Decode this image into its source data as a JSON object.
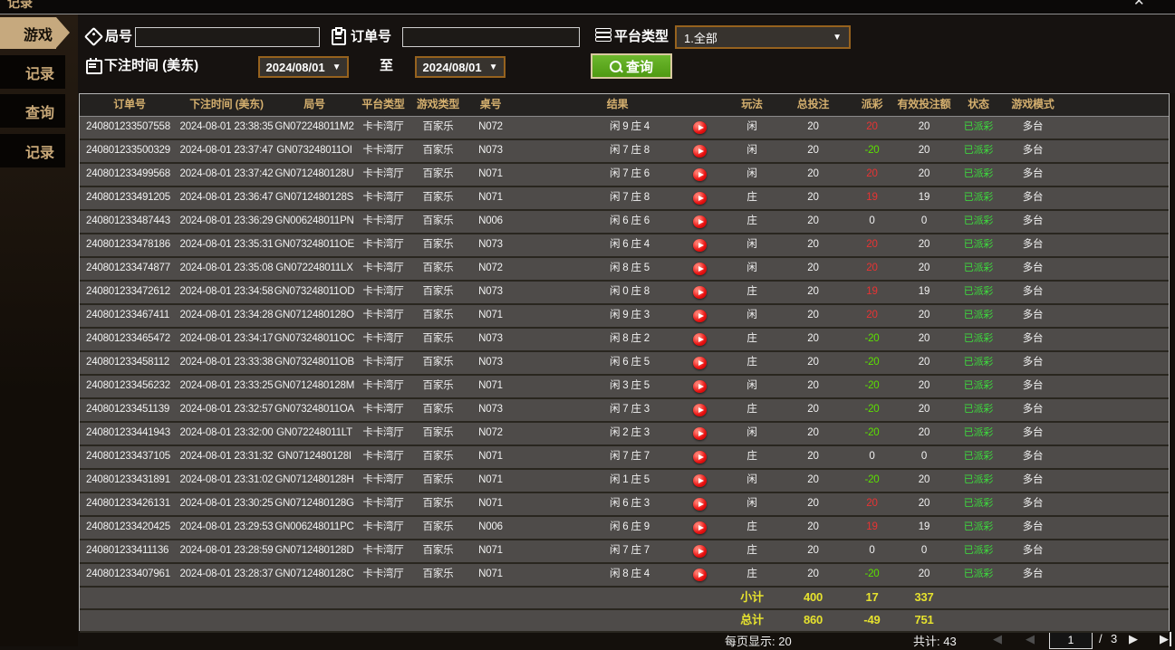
{
  "window": {
    "clipped_title": "记录",
    "close_glyph": "✕"
  },
  "colors": {
    "accent_tan": "#c6a97e",
    "button_green": "#5ca61c",
    "date_border_orange": "#96621e",
    "header_gold": "#d4af6e",
    "payout_win_red": "#e83333",
    "payout_lose_green": "#5ce000",
    "status_green": "#3ddd3d",
    "summary_yellow": "#e6e22e"
  },
  "sidebar": {
    "items": [
      {
        "label": "游戏",
        "active": true
      },
      {
        "label": "记录",
        "active": false
      },
      {
        "label": "查询",
        "active": false
      },
      {
        "label": "记录",
        "active": false
      }
    ]
  },
  "filters": {
    "round_label": "局号",
    "round_value": "",
    "order_label": "订单号",
    "order_value": "",
    "platform_label": "平台类型",
    "platform_value": "1.全部",
    "caret": "▼",
    "time_label": "下注时间 (美东)",
    "date_from": "2024/08/01",
    "to_label": "至",
    "date_to": "2024/08/01",
    "search_label": "查询"
  },
  "table": {
    "columns": [
      "订单号",
      "下注时间 (美东)",
      "局号",
      "平台类型",
      "游戏类型",
      "桌号",
      "结果",
      "玩法",
      "总投注",
      "派彩",
      "有效投注额",
      "状态",
      "游戏模式"
    ],
    "rows": [
      {
        "order": "240801233507558",
        "time": "2024-08-01 23:38:35",
        "round": "GN072248011M2",
        "platform": "卡卡湾厅",
        "gametype": "百家乐",
        "tableno": "N072",
        "result": "闲 9 庄 4",
        "playtype": "闲",
        "bet": "20",
        "payout": "20",
        "valid": "20",
        "status": "已派彩",
        "mode": "多台"
      },
      {
        "order": "240801233500329",
        "time": "2024-08-01 23:37:47",
        "round": "GN073248011OI",
        "platform": "卡卡湾厅",
        "gametype": "百家乐",
        "tableno": "N073",
        "result": "闲 7 庄 8",
        "playtype": "闲",
        "bet": "20",
        "payout": "-20",
        "valid": "20",
        "status": "已派彩",
        "mode": "多台"
      },
      {
        "order": "240801233499568",
        "time": "2024-08-01 23:37:42",
        "round": "GN0712480128U",
        "platform": "卡卡湾厅",
        "gametype": "百家乐",
        "tableno": "N071",
        "result": "闲 7 庄 6",
        "playtype": "闲",
        "bet": "20",
        "payout": "20",
        "valid": "20",
        "status": "已派彩",
        "mode": "多台"
      },
      {
        "order": "240801233491205",
        "time": "2024-08-01 23:36:47",
        "round": "GN0712480128S",
        "platform": "卡卡湾厅",
        "gametype": "百家乐",
        "tableno": "N071",
        "result": "闲 7 庄 8",
        "playtype": "庄",
        "bet": "20",
        "payout": "19",
        "valid": "19",
        "status": "已派彩",
        "mode": "多台"
      },
      {
        "order": "240801233487443",
        "time": "2024-08-01 23:36:29",
        "round": "GN006248011PN",
        "platform": "卡卡湾厅",
        "gametype": "百家乐",
        "tableno": "N006",
        "result": "闲 6 庄 6",
        "playtype": "庄",
        "bet": "20",
        "payout": "0",
        "valid": "0",
        "status": "已派彩",
        "mode": "多台"
      },
      {
        "order": "240801233478186",
        "time": "2024-08-01 23:35:31",
        "round": "GN073248011OE",
        "platform": "卡卡湾厅",
        "gametype": "百家乐",
        "tableno": "N073",
        "result": "闲 6 庄 4",
        "playtype": "闲",
        "bet": "20",
        "payout": "20",
        "valid": "20",
        "status": "已派彩",
        "mode": "多台"
      },
      {
        "order": "240801233474877",
        "time": "2024-08-01 23:35:08",
        "round": "GN072248011LX",
        "platform": "卡卡湾厅",
        "gametype": "百家乐",
        "tableno": "N072",
        "result": "闲 8 庄 5",
        "playtype": "闲",
        "bet": "20",
        "payout": "20",
        "valid": "20",
        "status": "已派彩",
        "mode": "多台"
      },
      {
        "order": "240801233472612",
        "time": "2024-08-01 23:34:58",
        "round": "GN073248011OD",
        "platform": "卡卡湾厅",
        "gametype": "百家乐",
        "tableno": "N073",
        "result": "闲 0 庄 8",
        "playtype": "庄",
        "bet": "20",
        "payout": "19",
        "valid": "19",
        "status": "已派彩",
        "mode": "多台"
      },
      {
        "order": "240801233467411",
        "time": "2024-08-01 23:34:28",
        "round": "GN0712480128O",
        "platform": "卡卡湾厅",
        "gametype": "百家乐",
        "tableno": "N071",
        "result": "闲 9 庄 3",
        "playtype": "闲",
        "bet": "20",
        "payout": "20",
        "valid": "20",
        "status": "已派彩",
        "mode": "多台"
      },
      {
        "order": "240801233465472",
        "time": "2024-08-01 23:34:17",
        "round": "GN073248011OC",
        "platform": "卡卡湾厅",
        "gametype": "百家乐",
        "tableno": "N073",
        "result": "闲 8 庄 2",
        "playtype": "庄",
        "bet": "20",
        "payout": "-20",
        "valid": "20",
        "status": "已派彩",
        "mode": "多台"
      },
      {
        "order": "240801233458112",
        "time": "2024-08-01 23:33:38",
        "round": "GN073248011OB",
        "platform": "卡卡湾厅",
        "gametype": "百家乐",
        "tableno": "N073",
        "result": "闲 6 庄 5",
        "playtype": "庄",
        "bet": "20",
        "payout": "-20",
        "valid": "20",
        "status": "已派彩",
        "mode": "多台"
      },
      {
        "order": "240801233456232",
        "time": "2024-08-01 23:33:25",
        "round": "GN0712480128M",
        "platform": "卡卡湾厅",
        "gametype": "百家乐",
        "tableno": "N071",
        "result": "闲 3 庄 5",
        "playtype": "闲",
        "bet": "20",
        "payout": "-20",
        "valid": "20",
        "status": "已派彩",
        "mode": "多台"
      },
      {
        "order": "240801233451139",
        "time": "2024-08-01 23:32:57",
        "round": "GN073248011OA",
        "platform": "卡卡湾厅",
        "gametype": "百家乐",
        "tableno": "N073",
        "result": "闲 7 庄 3",
        "playtype": "庄",
        "bet": "20",
        "payout": "-20",
        "valid": "20",
        "status": "已派彩",
        "mode": "多台"
      },
      {
        "order": "240801233441943",
        "time": "2024-08-01 23:32:00",
        "round": "GN072248011LT",
        "platform": "卡卡湾厅",
        "gametype": "百家乐",
        "tableno": "N072",
        "result": "闲 2 庄 3",
        "playtype": "闲",
        "bet": "20",
        "payout": "-20",
        "valid": "20",
        "status": "已派彩",
        "mode": "多台"
      },
      {
        "order": "240801233437105",
        "time": "2024-08-01 23:31:32",
        "round": "GN0712480128I",
        "platform": "卡卡湾厅",
        "gametype": "百家乐",
        "tableno": "N071",
        "result": "闲 7 庄 7",
        "playtype": "庄",
        "bet": "20",
        "payout": "0",
        "valid": "0",
        "status": "已派彩",
        "mode": "多台"
      },
      {
        "order": "240801233431891",
        "time": "2024-08-01 23:31:02",
        "round": "GN0712480128H",
        "platform": "卡卡湾厅",
        "gametype": "百家乐",
        "tableno": "N071",
        "result": "闲 1 庄 5",
        "playtype": "闲",
        "bet": "20",
        "payout": "-20",
        "valid": "20",
        "status": "已派彩",
        "mode": "多台"
      },
      {
        "order": "240801233426131",
        "time": "2024-08-01 23:30:25",
        "round": "GN0712480128G",
        "platform": "卡卡湾厅",
        "gametype": "百家乐",
        "tableno": "N071",
        "result": "闲 6 庄 3",
        "playtype": "闲",
        "bet": "20",
        "payout": "20",
        "valid": "20",
        "status": "已派彩",
        "mode": "多台"
      },
      {
        "order": "240801233420425",
        "time": "2024-08-01 23:29:53",
        "round": "GN006248011PC",
        "platform": "卡卡湾厅",
        "gametype": "百家乐",
        "tableno": "N006",
        "result": "闲 6 庄 9",
        "playtype": "庄",
        "bet": "20",
        "payout": "19",
        "valid": "19",
        "status": "已派彩",
        "mode": "多台"
      },
      {
        "order": "240801233411136",
        "time": "2024-08-01 23:28:59",
        "round": "GN0712480128D",
        "platform": "卡卡湾厅",
        "gametype": "百家乐",
        "tableno": "N071",
        "result": "闲 7 庄 7",
        "playtype": "庄",
        "bet": "20",
        "payout": "0",
        "valid": "0",
        "status": "已派彩",
        "mode": "多台"
      },
      {
        "order": "240801233407961",
        "time": "2024-08-01 23:28:37",
        "round": "GN0712480128C",
        "platform": "卡卡湾厅",
        "gametype": "百家乐",
        "tableno": "N071",
        "result": "闲 8 庄 4",
        "playtype": "庄",
        "bet": "20",
        "payout": "-20",
        "valid": "20",
        "status": "已派彩",
        "mode": "多台"
      }
    ],
    "subtotal": {
      "label": "小计",
      "bet": "400",
      "payout": "17",
      "valid": "337"
    },
    "total": {
      "label": "总计",
      "bet": "860",
      "payout": "-49",
      "valid": "751"
    }
  },
  "pagination": {
    "per_page": "每页显示: 20",
    "total_count": "共计: 43",
    "page": "1",
    "page_sep": "/",
    "page_total": "3",
    "first_glyph": "◀",
    "prev_glyph": "◀",
    "next_glyph": "▶",
    "last_glyph": "▶"
  }
}
